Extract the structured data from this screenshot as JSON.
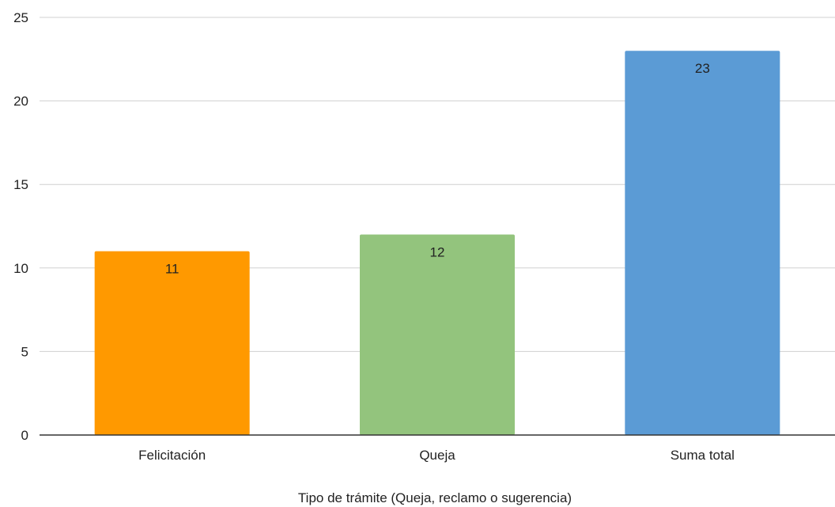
{
  "chart_data": {
    "type": "bar",
    "categories": [
      "Felicitación",
      "Queja",
      "Suma total"
    ],
    "values": [
      11,
      12,
      23
    ],
    "colors": [
      "#ff9900",
      "#93c47d",
      "#5b9bd5"
    ],
    "title": "",
    "xlabel": "Tipo de trámite (Queja, reclamo o sugerencia)",
    "ylabel": "",
    "ylim": [
      0,
      25
    ],
    "yticks": [
      0,
      5,
      10,
      15,
      20,
      25
    ],
    "grid": true,
    "data_labels": true
  }
}
